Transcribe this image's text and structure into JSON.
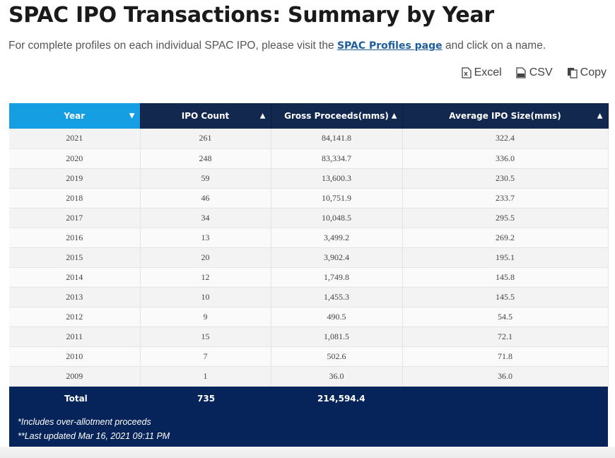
{
  "page": {
    "title": "SPAC IPO Transactions: Summary by Year",
    "subtitle_prefix": "For complete profiles on each individual SPAC IPO, please visit the",
    "subtitle_link": "SPAC Profiles page",
    "subtitle_suffix": "and click on a name."
  },
  "export": {
    "excel": "Excel",
    "csv": "CSV",
    "copy": "Copy"
  },
  "table": {
    "headers": [
      "Year",
      "IPO Count",
      "Gross Proceeds(mms)",
      "Average IPO Size(mms)"
    ],
    "sorted_column": "Year",
    "sort_direction": "descending",
    "rows": [
      [
        "2021",
        "261",
        "84,141.8",
        "322.4"
      ],
      [
        "2020",
        "248",
        "83,334.7",
        "336.0"
      ],
      [
        "2019",
        "59",
        "13,600.3",
        "230.5"
      ],
      [
        "2018",
        "46",
        "10,751.9",
        "233.7"
      ],
      [
        "2017",
        "34",
        "10,048.5",
        "295.5"
      ],
      [
        "2016",
        "13",
        "3,499.2",
        "269.2"
      ],
      [
        "2015",
        "20",
        "3,902.4",
        "195.1"
      ],
      [
        "2014",
        "12",
        "1,749.8",
        "145.8"
      ],
      [
        "2013",
        "10",
        "1,455.3",
        "145.5"
      ],
      [
        "2012",
        "9",
        "490.5",
        "54.5"
      ],
      [
        "2011",
        "15",
        "1,081.5",
        "72.1"
      ],
      [
        "2010",
        "7",
        "502.6",
        "71.8"
      ],
      [
        "2009",
        "1",
        "36.0",
        "36.0"
      ]
    ],
    "total": {
      "label": "Total",
      "ipo_count": "735",
      "gross_proceeds": "214,594.4"
    },
    "notes": [
      "*Includes over-allotment proceeds",
      "**Last updated Mar 16, 2021 09:11 PM"
    ]
  },
  "colors": {
    "header_bg": "#12284f",
    "sorted_header_bg": "#159ee2",
    "footer_bg": "#06245a",
    "link": "#1f5e9e"
  }
}
